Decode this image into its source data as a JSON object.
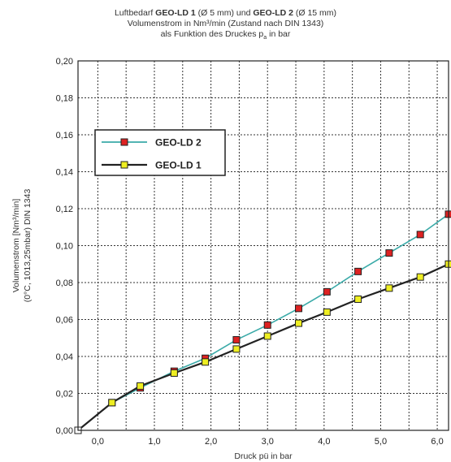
{
  "title": {
    "line1_prefix": "Luftbedarf ",
    "line1_bold1": "GEO-LD 1",
    "line1_mid": " (Ø 5 mm) und ",
    "line1_bold2": "GEO-LD 2",
    "line1_suffix": " (Ø 15 mm)",
    "line2": "Volumenstrom in Nm³/min (Zustand nach DIN 1343)",
    "line3_prefix": "als Funktion des Druckes p",
    "line3_sub": "a",
    "line3_suffix": " in bar"
  },
  "chart_data": {
    "type": "line",
    "xlabel": "Druck pü in bar",
    "ylabel_line1": "Volumenstrom [Nm³/min]",
    "ylabel_line2": "(0°C, 1013,25mbar) DIN 1343",
    "xlim": [
      -0.35,
      6.2
    ],
    "ylim": [
      0,
      0.2
    ],
    "x_ticks": [
      0.0,
      1.0,
      2.0,
      3.0,
      4.0,
      5.0,
      6.0
    ],
    "x_tick_labels": [
      "0,0",
      "1,0",
      "2,0",
      "3,0",
      "4,0",
      "5,0",
      "6,0"
    ],
    "y_ticks": [
      0,
      0.02,
      0.04,
      0.06,
      0.08,
      0.1,
      0.12,
      0.14,
      0.16,
      0.18,
      0.2
    ],
    "y_tick_labels": [
      "0,00",
      "0,02",
      "0,04",
      "0,06",
      "0,08",
      "0,10",
      "0,12",
      "0,14",
      "0,16",
      "0,18",
      "0,20"
    ],
    "grid": true,
    "legend_position": "upper-left",
    "series": [
      {
        "name": "GEO-LD 2",
        "line_color": "#3aaaa8",
        "marker_color": "#dd2222",
        "x": [
          -0.35,
          0.25,
          0.75,
          1.35,
          1.9,
          2.45,
          3.0,
          3.55,
          4.05,
          4.6,
          5.15,
          5.7,
          6.2
        ],
        "y": [
          0.0,
          0.015,
          0.023,
          0.032,
          0.039,
          0.049,
          0.057,
          0.066,
          0.075,
          0.086,
          0.096,
          0.106,
          0.117
        ]
      },
      {
        "name": "GEO-LD 1",
        "line_color": "#222222",
        "marker_color": "#eeee22",
        "x": [
          -0.35,
          0.25,
          0.75,
          1.35,
          1.9,
          2.45,
          3.0,
          3.55,
          4.05,
          4.6,
          5.15,
          5.7,
          6.2
        ],
        "y": [
          0.0,
          0.015,
          0.024,
          0.031,
          0.037,
          0.044,
          0.051,
          0.058,
          0.064,
          0.071,
          0.077,
          0.083,
          0.09
        ]
      }
    ]
  }
}
